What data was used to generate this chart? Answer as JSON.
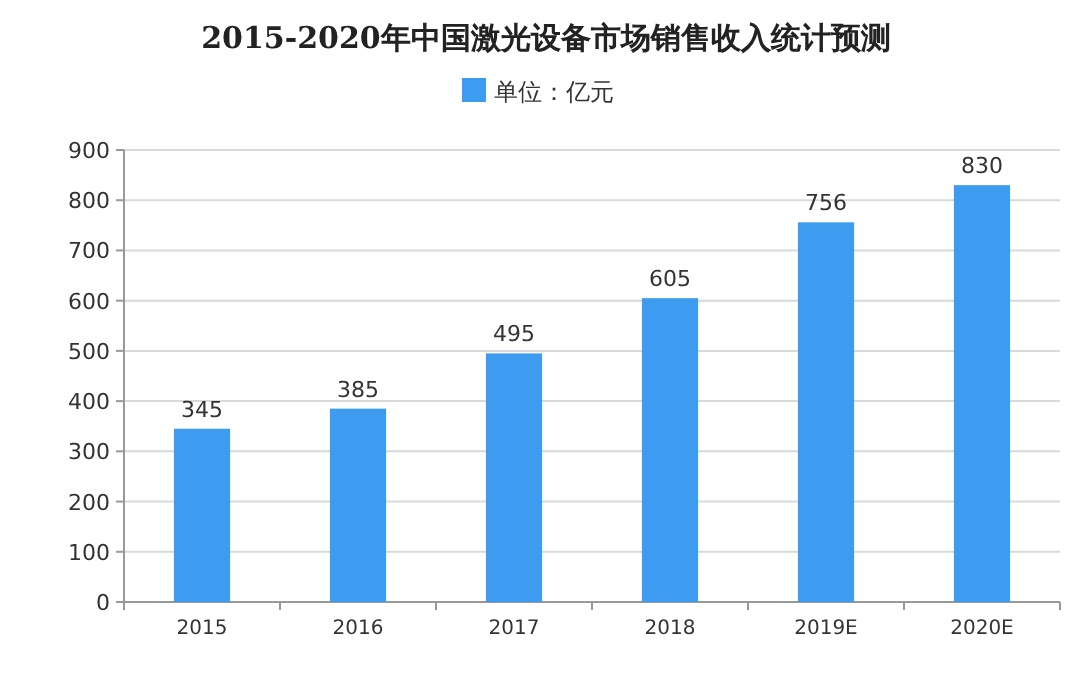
{
  "chart_data": {
    "type": "bar",
    "title": "2015-2020年中国激光设备市场销售收入统计预测",
    "categories": [
      "2015",
      "2016",
      "2017",
      "2018",
      "2019E",
      "2020E"
    ],
    "series": [
      {
        "name": "单位：亿元",
        "color": "#3d9bf0",
        "values": [
          345,
          385,
          495,
          605,
          756,
          830
        ]
      }
    ],
    "ylim": [
      0,
      900
    ],
    "yticks": [
      0,
      100,
      200,
      300,
      400,
      500,
      600,
      700,
      800,
      900
    ],
    "grid": "y",
    "legend": "top",
    "data_labels": true
  }
}
